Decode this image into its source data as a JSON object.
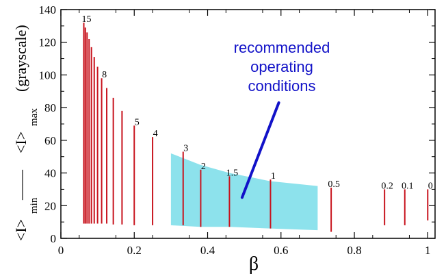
{
  "chart_data": {
    "type": "bar",
    "xlabel": "β",
    "ylabel_parts": {
      "left": "<I>",
      "left_sub": "min",
      "dash": "——",
      "right": "<I>",
      "right_sub": "max",
      "units": "(grayscale)"
    },
    "xlim": [
      0,
      1.02
    ],
    "ylim": [
      0,
      140
    ],
    "x_ticks": [
      {
        "value": 0,
        "label": "0"
      },
      {
        "value": 0.2,
        "label": "0.2"
      },
      {
        "value": 0.4,
        "label": "0.4"
      },
      {
        "value": 0.6,
        "label": "0.6"
      },
      {
        "value": 0.8,
        "label": "0.8"
      },
      {
        "value": 1.0,
        "label": "1"
      }
    ],
    "y_ticks": [
      {
        "value": 0,
        "label": "0"
      },
      {
        "value": 20,
        "label": "20"
      },
      {
        "value": 40,
        "label": "40"
      },
      {
        "value": 60,
        "label": "60"
      },
      {
        "value": 80,
        "label": "80"
      },
      {
        "value": 100,
        "label": "100"
      },
      {
        "value": 120,
        "label": "120"
      },
      {
        "value": 140,
        "label": "140"
      }
    ],
    "ranges": [
      {
        "x": 0.0625,
        "min": 9,
        "max": 132,
        "label": "15"
      },
      {
        "x": 0.0667,
        "min": 9,
        "max": 129
      },
      {
        "x": 0.0714,
        "min": 9,
        "max": 126
      },
      {
        "x": 0.0769,
        "min": 9,
        "max": 122
      },
      {
        "x": 0.0833,
        "min": 9,
        "max": 117
      },
      {
        "x": 0.0909,
        "min": 9,
        "max": 111
      },
      {
        "x": 0.1,
        "min": 9,
        "max": 105
      },
      {
        "x": 0.1111,
        "min": 9,
        "max": 98,
        "label": "8"
      },
      {
        "x": 0.125,
        "min": 9,
        "max": 92
      },
      {
        "x": 0.1429,
        "min": 8.5,
        "max": 86
      },
      {
        "x": 0.1667,
        "min": 8.5,
        "max": 78
      },
      {
        "x": 0.2,
        "min": 8,
        "max": 69,
        "label": "5"
      },
      {
        "x": 0.25,
        "min": 8,
        "max": 62,
        "label": "4"
      },
      {
        "x": 0.3333,
        "min": 8,
        "max": 53,
        "label": "3"
      },
      {
        "x": 0.3812,
        "min": 7,
        "max": 42,
        "label": "2"
      },
      {
        "x": 0.4595,
        "min": 7,
        "max": 38,
        "label": "1.5"
      },
      {
        "x": 0.5714,
        "min": 6,
        "max": 36,
        "label": "1"
      },
      {
        "x": 0.7368,
        "min": 4,
        "max": 31,
        "label": "0.5"
      },
      {
        "x": 0.8823,
        "min": 8,
        "max": 30,
        "label": "0.2"
      },
      {
        "x": 0.9375,
        "min": 8,
        "max": 30,
        "label": "0.1"
      },
      {
        "x": 1.0,
        "min": 11,
        "max": 30,
        "label": "0"
      }
    ],
    "recommended_region": {
      "x_range": [
        0.3,
        0.7
      ],
      "upper": [
        [
          0.3,
          52
        ],
        [
          0.38,
          45
        ],
        [
          0.46,
          40
        ],
        [
          0.57,
          35
        ],
        [
          0.7,
          32
        ]
      ],
      "lower": [
        [
          0.3,
          8
        ],
        [
          0.38,
          7
        ],
        [
          0.46,
          7
        ],
        [
          0.57,
          6
        ],
        [
          0.7,
          5
        ]
      ]
    },
    "annotation": {
      "lines": [
        "recommended",
        "operating",
        "conditions"
      ],
      "arrow_tail": [
        0.594,
        83
      ],
      "arrow_head": [
        0.494,
        25
      ]
    },
    "colors": {
      "bar": "#c8141e",
      "region": "#8de2ec",
      "annotation": "#1212c8"
    }
  }
}
